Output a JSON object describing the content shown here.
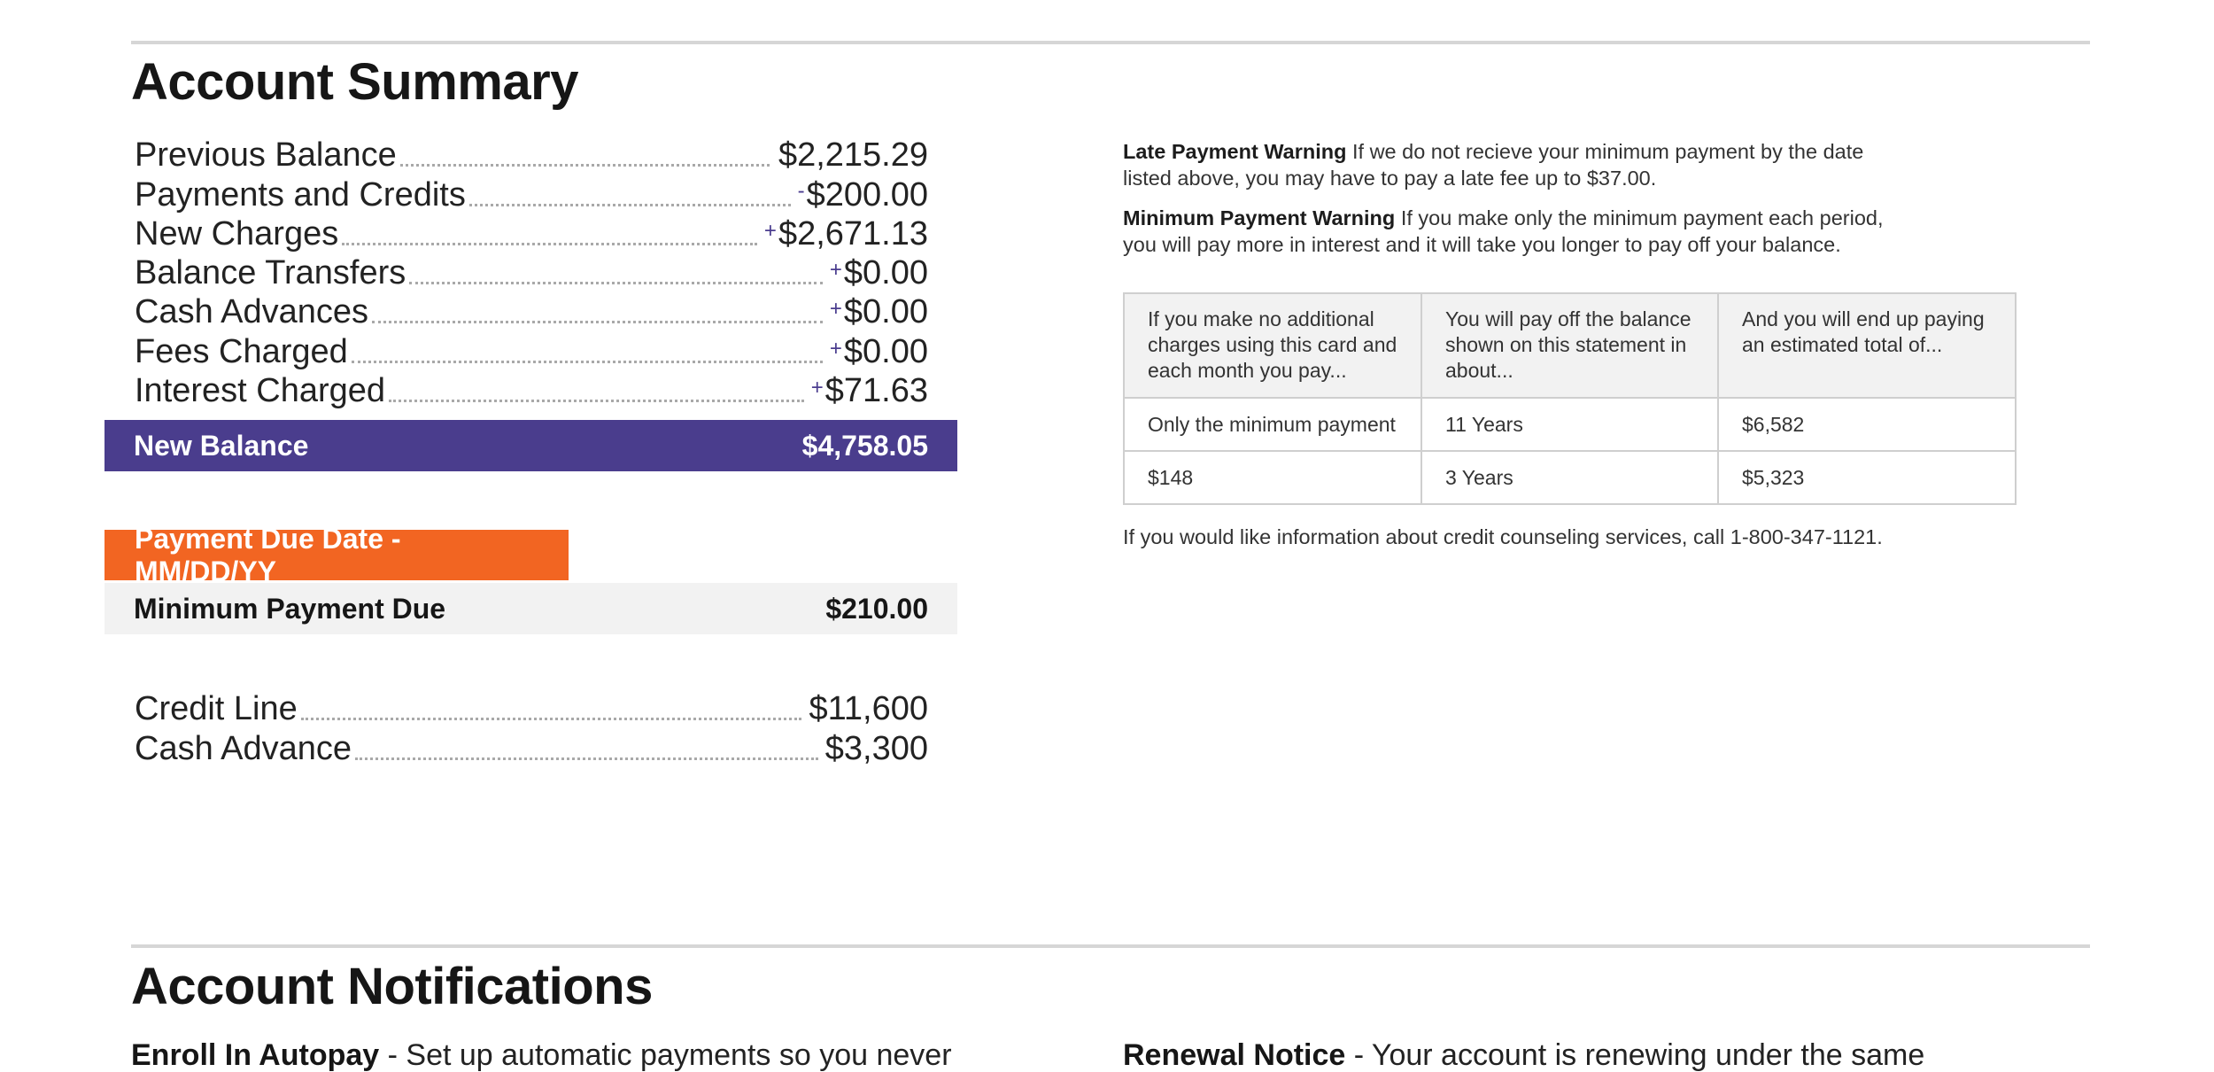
{
  "account_summary": {
    "title": "Account Summary",
    "rows": [
      {
        "label": "Previous Balance",
        "sign": "",
        "value": "$2,215.29"
      },
      {
        "label": "Payments and Credits",
        "sign": "-",
        "value": "$200.00"
      },
      {
        "label": "New Charges",
        "sign": "+",
        "value": "$2,671.13"
      },
      {
        "label": "Balance Transfers",
        "sign": "+",
        "value": "$0.00"
      },
      {
        "label": "Cash Advances",
        "sign": "+",
        "value": "$0.00"
      },
      {
        "label": "Fees Charged",
        "sign": "+",
        "value": "$0.00"
      },
      {
        "label": "Interest Charged",
        "sign": "+",
        "value": "$71.63"
      }
    ],
    "new_balance": {
      "label": "New Balance",
      "value": "$4,758.05"
    },
    "payment_due": {
      "label": "Payment Due Date - MM/DD/YY"
    },
    "minimum_payment": {
      "label": "Minimum Payment Due",
      "value": "$210.00"
    },
    "credit": [
      {
        "label": "Credit Line",
        "value": "$11,600"
      },
      {
        "label": "Cash Advance",
        "value": "$3,300"
      }
    ]
  },
  "warnings": {
    "late": {
      "title": "Late Payment Warning",
      "text": "If we do not recieve your minimum payment by the date listed above, you may have to pay a late fee up to $37.00."
    },
    "minimum": {
      "title": "Minimum Payment Warning",
      "text": "If you make only the minimum payment each period, you will pay more in interest and it will take you longer to pay off your balance."
    }
  },
  "payoff_table": {
    "headers": [
      "If you make no additional charges using this card and each month you pay...",
      "You will pay off the balance shown on this statement in about...",
      "And you will end up paying an estimated total of..."
    ],
    "rows": [
      [
        "Only the minimum payment",
        "11 Years",
        "$6,582"
      ],
      [
        "$148",
        "3 Years",
        "$5,323"
      ]
    ]
  },
  "counseling": "If you would like information about credit counseling services, call 1-800-347-1121.",
  "notifications": {
    "title": "Account Notifications",
    "items": [
      {
        "title": "Enroll In Autopay",
        "text": " - Set up automatic payments so you never"
      },
      {
        "title": "Renewal Notice",
        "text": " - Your account is renewing under the same"
      }
    ]
  },
  "colors": {
    "purple": "#4a3d8d",
    "orange": "#f26522",
    "gray_bg": "#f2f2f2"
  }
}
